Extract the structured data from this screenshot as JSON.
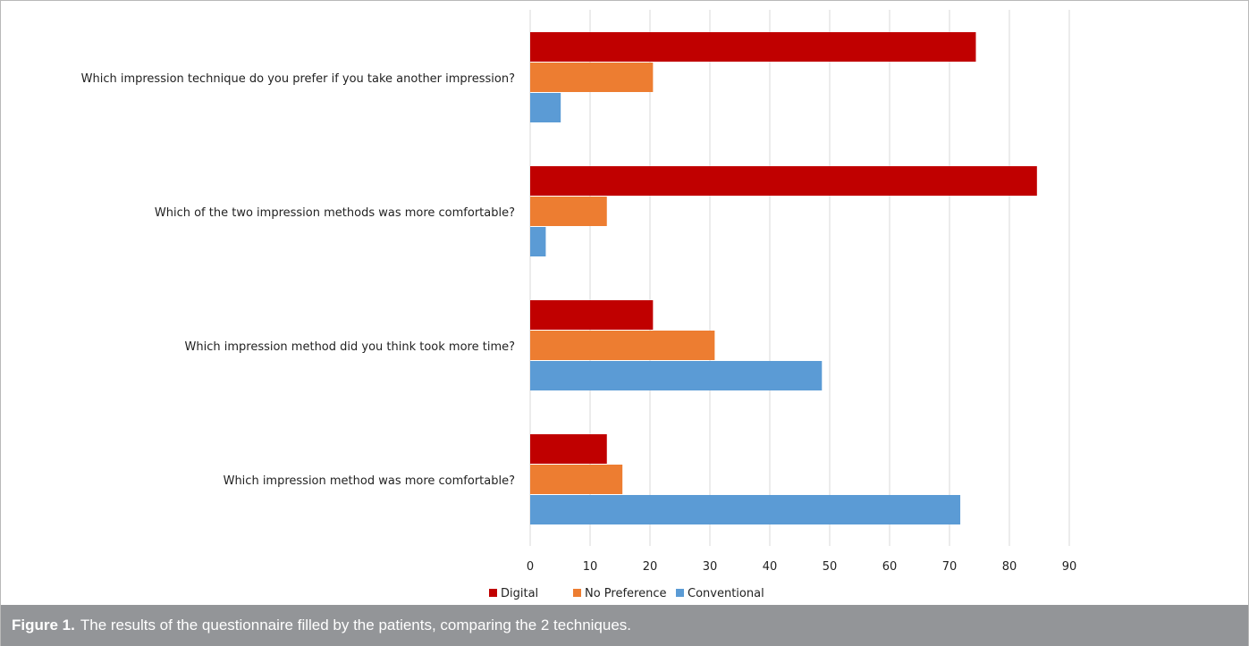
{
  "caption": {
    "label": "Figure 1.",
    "text": "The results of the questionnaire filled by the patients, comparing the 2 techniques."
  },
  "chart_data": {
    "type": "bar",
    "orientation": "horizontal",
    "title": "",
    "xlabel": "",
    "ylabel": "",
    "categories": [
      "Which impression technique do you prefer if you take another impression?",
      "Which of the two impression methods was more comfortable?",
      "Which impression method did you think took more time?",
      "Which impression method was more comfortable?"
    ],
    "series": [
      {
        "name": "Digital",
        "color": "#C00000",
        "values": [
          74.4,
          84.6,
          20.5,
          12.8
        ]
      },
      {
        "name": "No Preference",
        "color": "#ED7D31",
        "values": [
          20.5,
          12.8,
          30.8,
          15.4
        ]
      },
      {
        "name": "Conventional",
        "color": "#5B9BD5",
        "values": [
          5.1,
          2.6,
          48.7,
          71.8
        ]
      }
    ],
    "xlim": [
      0,
      90
    ],
    "xticks": [
      0,
      10,
      20,
      30,
      40,
      50,
      60,
      70,
      80,
      90
    ],
    "grid": true,
    "legend_position": "bottom-center"
  }
}
